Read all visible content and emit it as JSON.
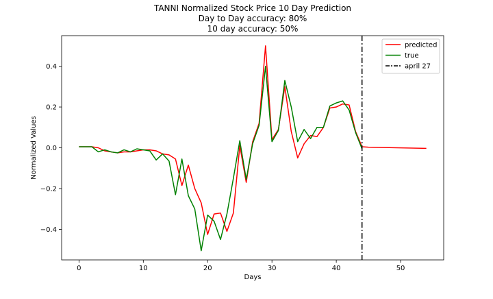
{
  "chart_data": {
    "type": "line",
    "title": [
      "TANNI Normalized Stock Price 10 Day Prediction",
      "Day to Day accuracy: 80%",
      "10 day accuracy: 50%"
    ],
    "xlabel": "Days",
    "ylabel": "Normalized Values",
    "xlim": [
      -2.7,
      56.7
    ],
    "ylim": [
      -0.55,
      0.55
    ],
    "xticks": [
      0,
      10,
      20,
      30,
      40,
      50
    ],
    "yticks": [
      -0.4,
      -0.2,
      0.0,
      0.2,
      0.4
    ],
    "ytick_labels": [
      "−0.4",
      "−0.2",
      "0.0",
      "0.2",
      "0.4"
    ],
    "grid": false,
    "legend_position": "top-right",
    "series": [
      {
        "name": "predicted",
        "color": "#ff0000",
        "style": "solid",
        "x": [
          0,
          1,
          2,
          3,
          4,
          5,
          6,
          7,
          8,
          9,
          10,
          11,
          12,
          13,
          14,
          15,
          16,
          17,
          18,
          19,
          20,
          21,
          22,
          23,
          24,
          25,
          26,
          27,
          28,
          29,
          30,
          31,
          32,
          33,
          34,
          35,
          36,
          37,
          38,
          39,
          40,
          41,
          42,
          43,
          44,
          45,
          54
        ],
        "y": [
          0.005,
          0.005,
          0.005,
          0.0,
          -0.015,
          -0.02,
          -0.025,
          -0.02,
          -0.02,
          -0.015,
          -0.01,
          -0.01,
          -0.015,
          -0.03,
          -0.035,
          -0.055,
          -0.185,
          -0.085,
          -0.2,
          -0.27,
          -0.425,
          -0.325,
          -0.32,
          -0.41,
          -0.32,
          0.01,
          -0.17,
          0.03,
          0.12,
          0.5,
          0.04,
          0.09,
          0.3,
          0.08,
          -0.05,
          0.02,
          0.06,
          0.055,
          0.1,
          0.195,
          0.2,
          0.215,
          0.21,
          0.08,
          0.005,
          0.003,
          -0.003
        ]
      },
      {
        "name": "true",
        "color": "#008000",
        "style": "solid",
        "x": [
          0,
          1,
          2,
          3,
          4,
          5,
          6,
          7,
          8,
          9,
          10,
          11,
          12,
          13,
          14,
          15,
          16,
          17,
          18,
          19,
          20,
          21,
          22,
          23,
          24,
          25,
          26,
          27,
          28,
          29,
          30,
          31,
          32,
          33,
          34,
          35,
          36,
          37,
          38,
          39,
          40,
          41,
          42,
          43,
          44
        ],
        "y": [
          0.005,
          0.005,
          0.005,
          -0.02,
          -0.01,
          -0.02,
          -0.025,
          -0.01,
          -0.02,
          -0.005,
          -0.01,
          -0.015,
          -0.06,
          -0.03,
          -0.065,
          -0.23,
          -0.055,
          -0.235,
          -0.3,
          -0.505,
          -0.33,
          -0.36,
          -0.45,
          -0.325,
          -0.15,
          0.035,
          -0.155,
          0.02,
          0.11,
          0.4,
          0.03,
          0.085,
          0.33,
          0.2,
          0.03,
          0.09,
          0.045,
          0.1,
          0.1,
          0.205,
          0.22,
          0.23,
          0.185,
          0.075,
          -0.005
        ]
      },
      {
        "name": "april 27",
        "color": "#000000",
        "style": "dashdot",
        "vline_x": 44
      }
    ]
  }
}
